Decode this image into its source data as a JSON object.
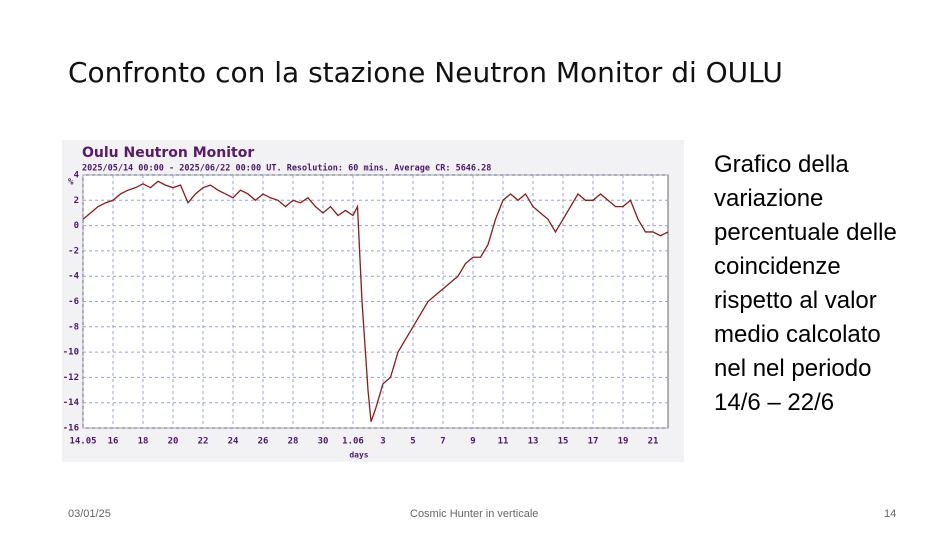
{
  "slide": {
    "title": "Confronto con la stazione Neutron Monitor di OULU",
    "body": [
      "Grafico della",
      "variazione",
      "percentuale delle",
      "coincidenze",
      "rispetto al valor",
      "medio calcolato",
      "nel nel periodo",
      "14/6 – 22/6"
    ],
    "footer": {
      "date": "03/01/25",
      "center": "Cosmic Hunter in verticale",
      "page": "14"
    }
  },
  "chart_data": {
    "type": "line",
    "title": "Oulu Neutron Monitor",
    "subtitle": "2025/05/14  00:00 - 2025/06/22  00:00 UT. Resolution: 60 mins. Average CR: 5646.28",
    "y_label": "%",
    "x_label": "days",
    "x": [
      0,
      0.5,
      1,
      1.5,
      2,
      2.5,
      3,
      3.5,
      4,
      4.5,
      5,
      5.5,
      6,
      6.5,
      7,
      7.5,
      8,
      8.5,
      9,
      9.5,
      10,
      10.5,
      11,
      11.5,
      12,
      12.5,
      13,
      13.5,
      14,
      14.5,
      15,
      15.5,
      16,
      16.5,
      17,
      17.5,
      18,
      18.3,
      18.6,
      19,
      19.2,
      19.5,
      20,
      20.5,
      21,
      21.5,
      22,
      22.5,
      23,
      23.5,
      24,
      24.5,
      25,
      25.5,
      26,
      26.5,
      27,
      27.5,
      28,
      28.5,
      29,
      29.5,
      30,
      30.5,
      31,
      31.5,
      32,
      32.5,
      33,
      33.5,
      34,
      34.5,
      35,
      35.5,
      36,
      36.5,
      37,
      37.5,
      38,
      38.5,
      39
    ],
    "series": [
      {
        "name": "Oulu",
        "color": "#8b1a1a",
        "values": [
          0.5,
          1.0,
          1.5,
          1.8,
          2.0,
          2.5,
          2.8,
          3.0,
          3.3,
          3.0,
          3.5,
          3.2,
          3.0,
          3.2,
          1.8,
          2.5,
          3.0,
          3.2,
          2.8,
          2.5,
          2.2,
          2.8,
          2.5,
          2.0,
          2.5,
          2.2,
          2.0,
          1.5,
          2.0,
          1.8,
          2.2,
          1.5,
          1.0,
          1.5,
          0.8,
          1.2,
          0.8,
          1.5,
          -6,
          -13,
          -15.5,
          -14.5,
          -12.5,
          -12,
          -10,
          -9,
          -8,
          -7,
          -6,
          -5.5,
          -5,
          -4.5,
          -4,
          -3,
          -2.5,
          -2.5,
          -1.5,
          0.5,
          2.0,
          2.5,
          2.0,
          2.5,
          1.5,
          1.0,
          0.5,
          -0.5,
          0.5,
          1.5,
          2.5,
          2.0,
          2.0,
          2.5,
          2.0,
          1.5,
          1.5,
          2.0,
          0.5,
          -0.5,
          -0.5,
          -0.8,
          -0.5
        ]
      }
    ],
    "xlim": [
      0,
      39
    ],
    "xticks": [
      {
        "value": 0,
        "label": "14.05"
      },
      {
        "value": 2,
        "label": "16"
      },
      {
        "value": 4,
        "label": "18"
      },
      {
        "value": 6,
        "label": "20"
      },
      {
        "value": 8,
        "label": "22"
      },
      {
        "value": 10,
        "label": "24"
      },
      {
        "value": 12,
        "label": "26"
      },
      {
        "value": 14,
        "label": "28"
      },
      {
        "value": 16,
        "label": "30"
      },
      {
        "value": 18,
        "label": "1.06"
      },
      {
        "value": 20,
        "label": "3"
      },
      {
        "value": 22,
        "label": "5"
      },
      {
        "value": 24,
        "label": "7"
      },
      {
        "value": 26,
        "label": "9"
      },
      {
        "value": 28,
        "label": "11"
      },
      {
        "value": 30,
        "label": "13"
      },
      {
        "value": 32,
        "label": "15"
      },
      {
        "value": 34,
        "label": "17"
      },
      {
        "value": 36,
        "label": "19"
      },
      {
        "value": 38,
        "label": "21"
      }
    ],
    "ylim": [
      -16,
      4
    ],
    "yticks": [
      -16,
      -14,
      -12,
      -10,
      -8,
      -6,
      -4,
      -2,
      0,
      2,
      4
    ],
    "grid": true
  }
}
